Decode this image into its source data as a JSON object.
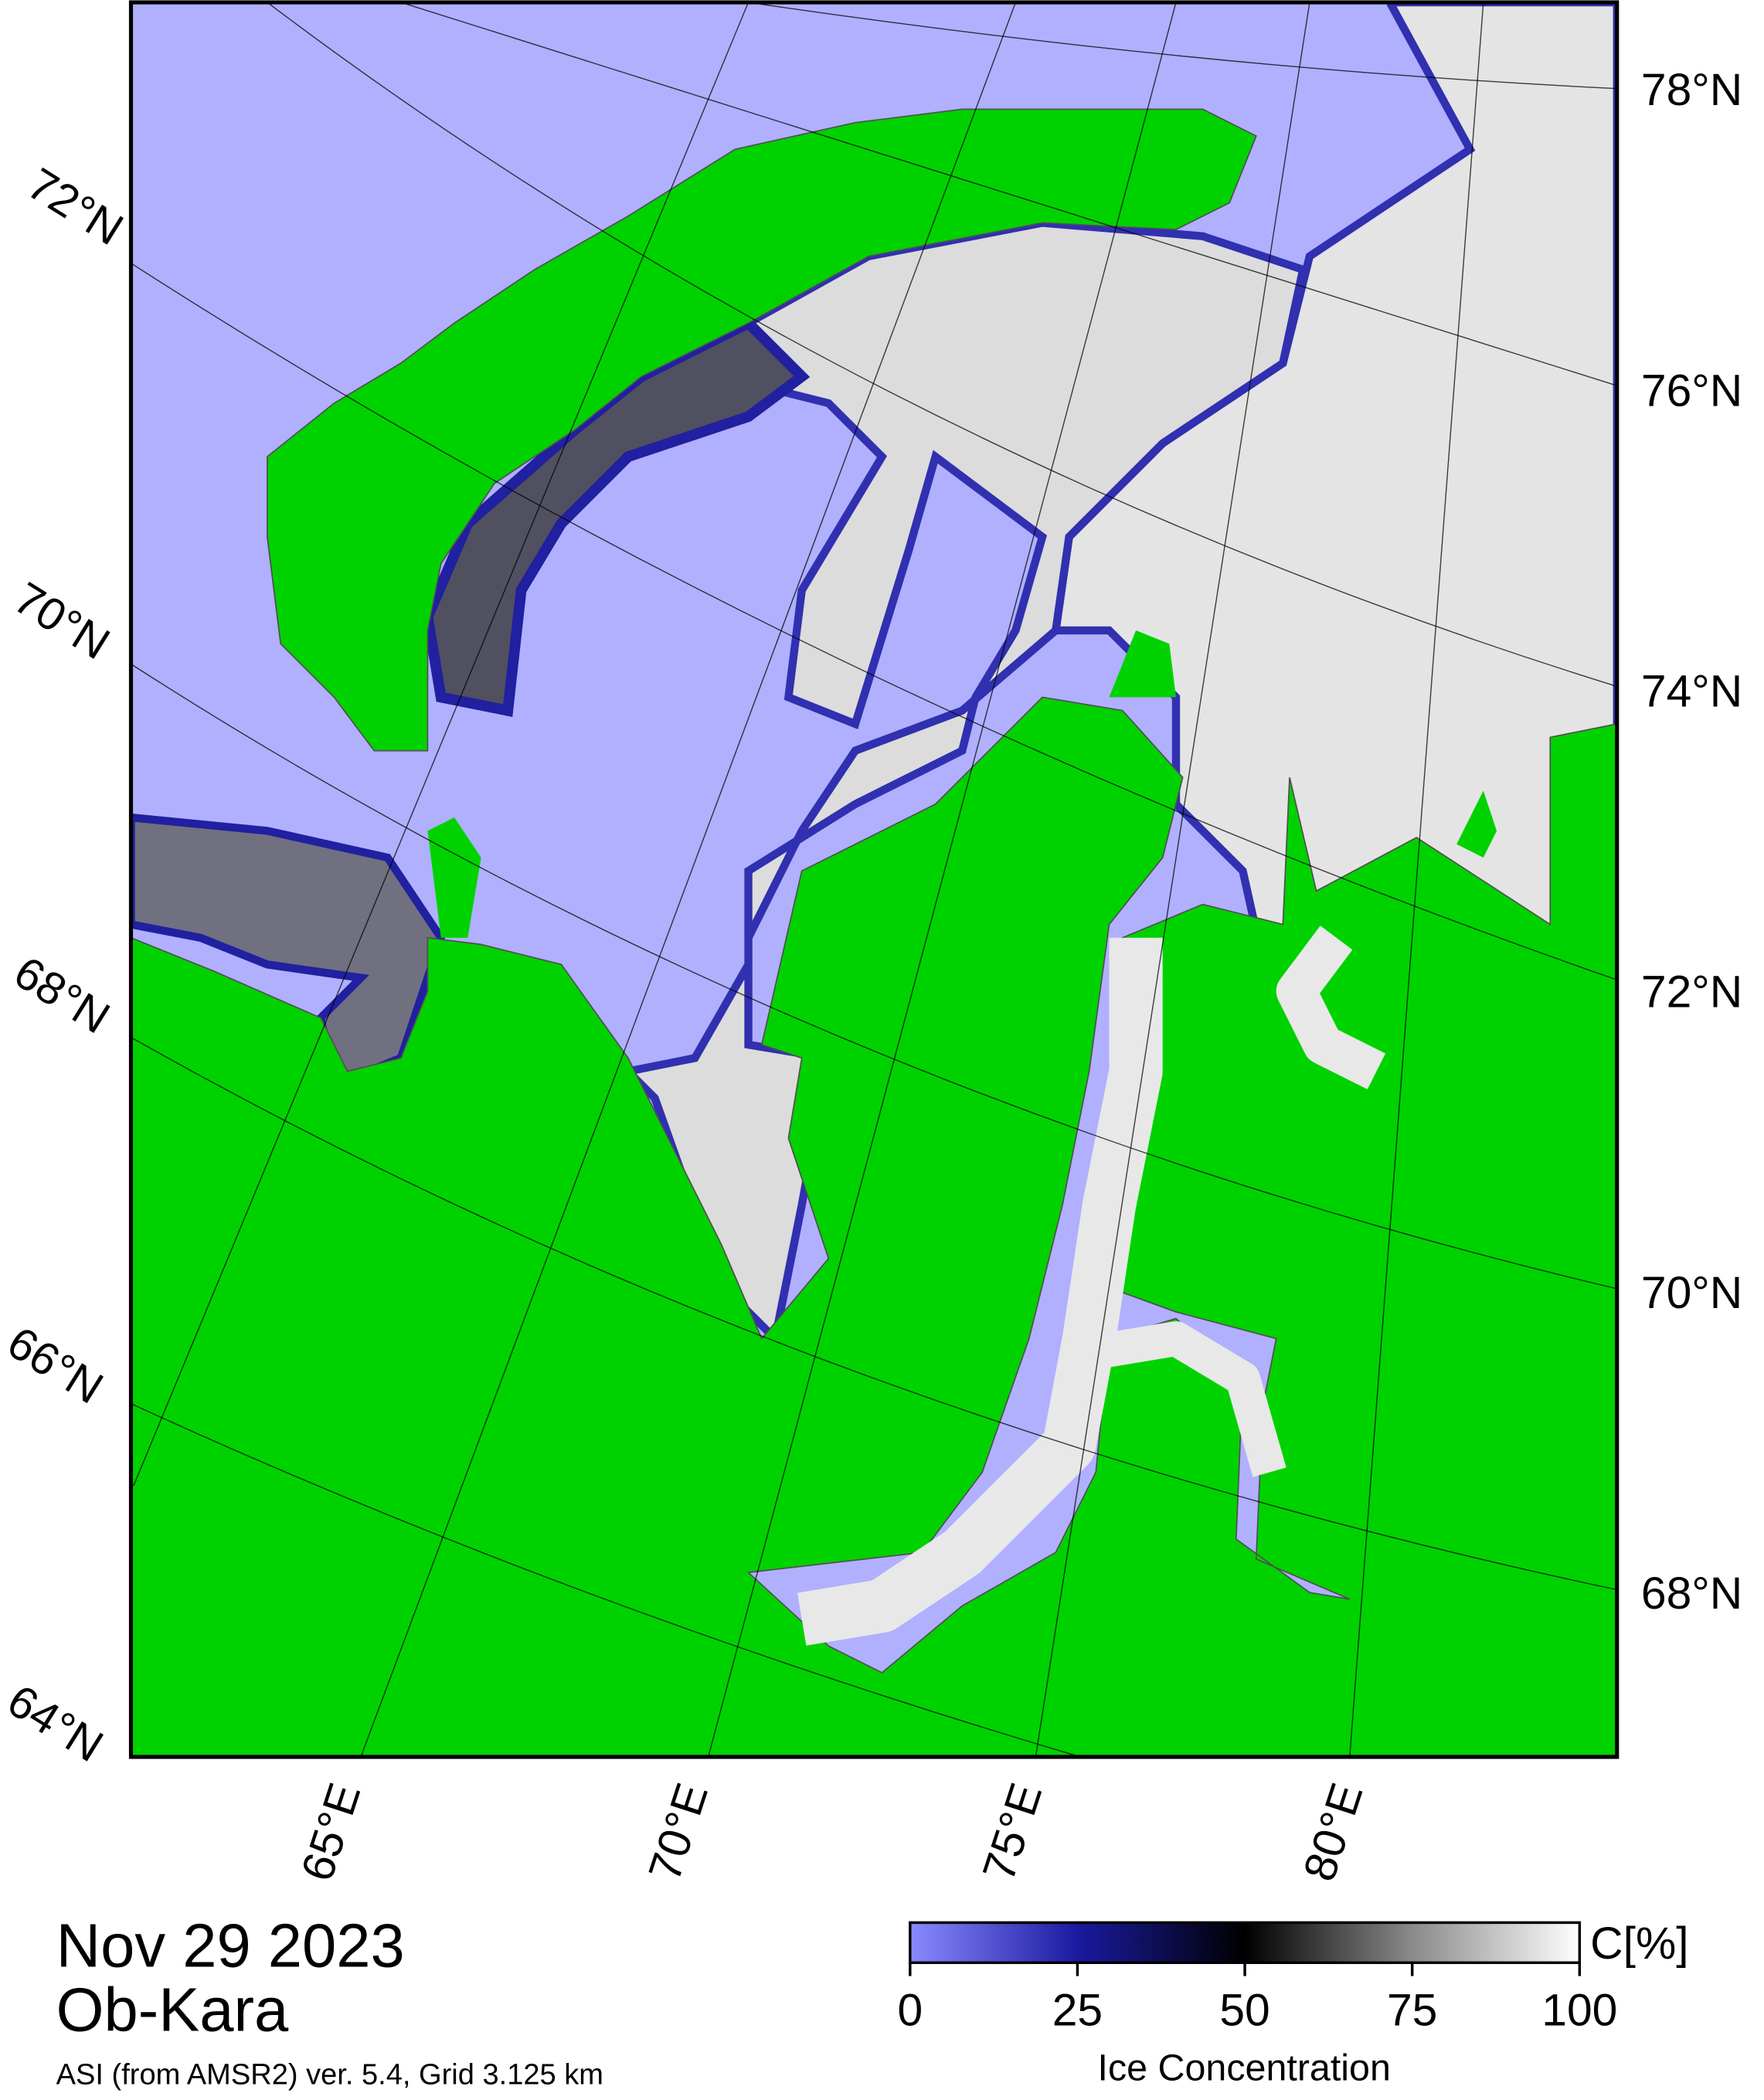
{
  "map": {
    "lat_labels_left": [
      "72°N",
      "70°N",
      "68°N",
      "66°N",
      "64°N"
    ],
    "lat_labels_right": [
      "78°N",
      "76°N",
      "74°N",
      "72°N",
      "70°N",
      "68°N"
    ],
    "lon_labels": [
      "65°E",
      "70°E",
      "75°E",
      "80°E"
    ]
  },
  "footer": {
    "date": "Nov 29 2023",
    "region": "Ob-Kara",
    "source": "ASI (from AMSR2) ver. 5.4,  Grid 3.125 km"
  },
  "colorbar": {
    "unit": "C[%]",
    "label": "Ice Concentration",
    "range": [
      0,
      100
    ],
    "ticks": [
      0,
      25,
      50,
      75,
      100
    ]
  }
}
